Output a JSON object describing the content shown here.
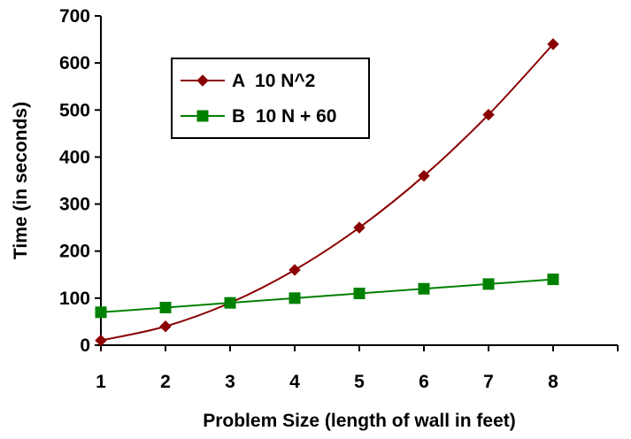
{
  "chart_data": {
    "type": "line",
    "title": "",
    "xlabel": "Problem Size  (length of wall in feet)",
    "ylabel": "Time (in seconds)",
    "x": [
      1,
      2,
      3,
      4,
      5,
      6,
      7,
      8
    ],
    "xlim": [
      1,
      9
    ],
    "ylim": [
      0,
      700
    ],
    "x_ticks": [
      "1",
      "2",
      "3",
      "4",
      "5",
      "6",
      "7",
      "8"
    ],
    "y_ticks": [
      "0",
      "100",
      "200",
      "300",
      "400",
      "500",
      "600",
      "700"
    ],
    "grid": false,
    "legend_position": "top-left",
    "series": [
      {
        "name": "A  10 N^2",
        "color": "#8B0000",
        "marker": "diamond",
        "values": [
          10,
          40,
          90,
          160,
          250,
          360,
          490,
          640
        ]
      },
      {
        "name": "B  10 N + 60",
        "color": "#008000",
        "marker": "square",
        "values": [
          70,
          80,
          90,
          100,
          110,
          120,
          130,
          140
        ]
      }
    ]
  }
}
